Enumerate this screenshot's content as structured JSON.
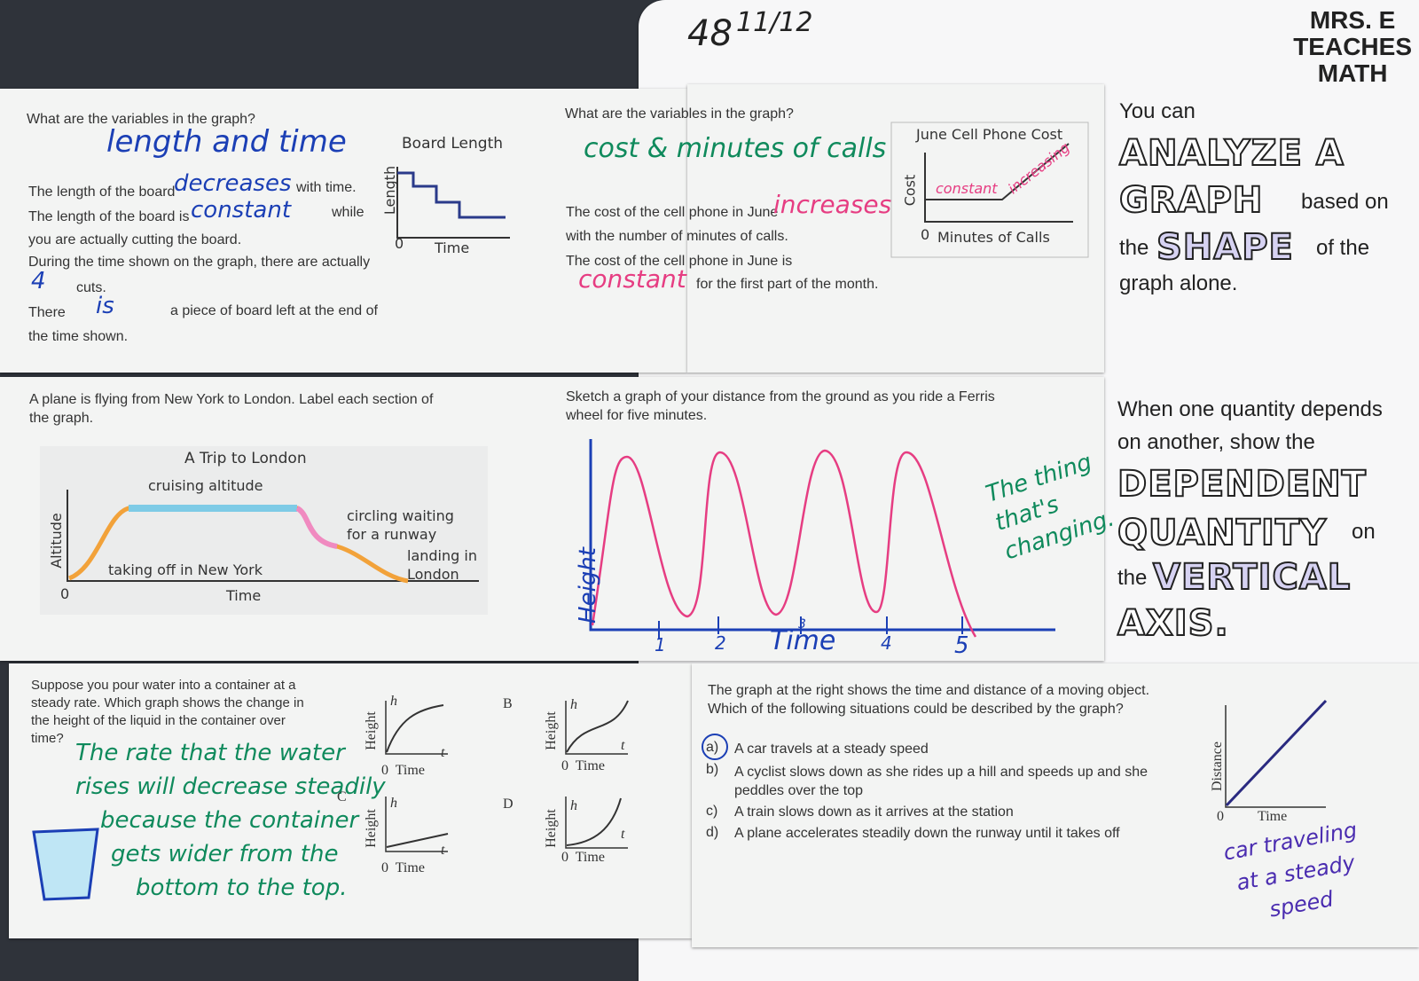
{
  "header": {
    "page_number": "48",
    "date": "11/12",
    "brand": [
      "MRS. E",
      "TEACHES",
      "MATH"
    ]
  },
  "board": {
    "question": "What are the variables in the graph?",
    "answer": "length and time",
    "lines": [
      "The length of the board",
      "with time.",
      "The length of the board is",
      "while",
      "you are actually cutting the board.",
      "During the time shown on the graph, there are actually",
      "cuts.",
      "There",
      "a piece of board left at the end of",
      "the time shown."
    ],
    "blanks": [
      "decreases",
      "constant",
      "4",
      "is"
    ],
    "graph": {
      "title": "Board Length",
      "y_label": "Length",
      "x_label": "Time",
      "origin": "0"
    }
  },
  "phone": {
    "question": "What are the variables in the graph?",
    "answer": "cost & minutes of calls",
    "lines": [
      "The cost of the cell phone in June",
      "with the number of minutes of calls.",
      "The cost of the cell phone in June is",
      "for the first part of the month."
    ],
    "blanks": [
      "increases",
      "constant"
    ],
    "graph": {
      "title": "June Cell Phone Cost",
      "y_label": "Cost",
      "x_label": "Minutes of Calls",
      "origin": "0",
      "notes": [
        "constant",
        "increasing"
      ]
    }
  },
  "summary_shape": {
    "text": [
      "You can",
      "ANALYZE A",
      "GRAPH",
      "based on",
      "the",
      "SHAPE",
      "of the",
      "graph alone."
    ]
  },
  "plane": {
    "prompt": "A plane is flying from New York to London.  Label each section of the graph.",
    "graph": {
      "title": "A Trip to London",
      "y_label": "Altitude",
      "x_label": "Time",
      "origin": "0",
      "labels": [
        "cruising altitude",
        "taking off in New York",
        "circling waiting",
        "for a runway",
        "landing in",
        "London"
      ]
    }
  },
  "ferris": {
    "prompt": "Sketch a graph of your distance from the ground as you ride a Ferris wheel for five minutes.",
    "y_label": "Height",
    "x_label": "Time",
    "ticks": [
      "1",
      "2",
      "3",
      "4",
      "5"
    ],
    "note": [
      "The thing",
      "that's",
      "changing."
    ]
  },
  "summary_axis": {
    "text": [
      "When one quantity depends",
      "on another, show the",
      "DEPENDENT",
      "QUANTITY",
      "on",
      "the",
      "VERTICAL",
      "AXIS."
    ]
  },
  "container": {
    "prompt": "Suppose you pour water into a container at a steady rate.  Which graph shows the change in the height of the liquid in the container over time?",
    "answer": [
      "The rate that the water",
      "rises will decrease steadily",
      "because the container",
      "gets wider from the",
      "bottom to the top."
    ],
    "letters": [
      "B",
      "C",
      "D"
    ],
    "graph": {
      "y_label": "Height",
      "x_label": "Time",
      "h": "h",
      "t": "t",
      "origin": "0"
    }
  },
  "moving": {
    "prompt": "The graph at the right shows the time and distance of a moving object. Which of the following situations could be described by the graph?",
    "choices": [
      {
        "letter": "a)",
        "text": "A car travels at a steady speed"
      },
      {
        "letter": "b)",
        "text": "A cyclist slows down as she rides up a hill and speeds up and she peddles over the top"
      },
      {
        "letter": "c)",
        "text": "A train slows down as it arrives at the station"
      },
      {
        "letter": "d)",
        "text": "A plane accelerates steadily down the runway until it takes off"
      }
    ],
    "graph": {
      "y_label": "Distance",
      "x_label": "Time",
      "origin": "0"
    },
    "answer": [
      "car traveling",
      "at a steady",
      "speed"
    ]
  }
}
